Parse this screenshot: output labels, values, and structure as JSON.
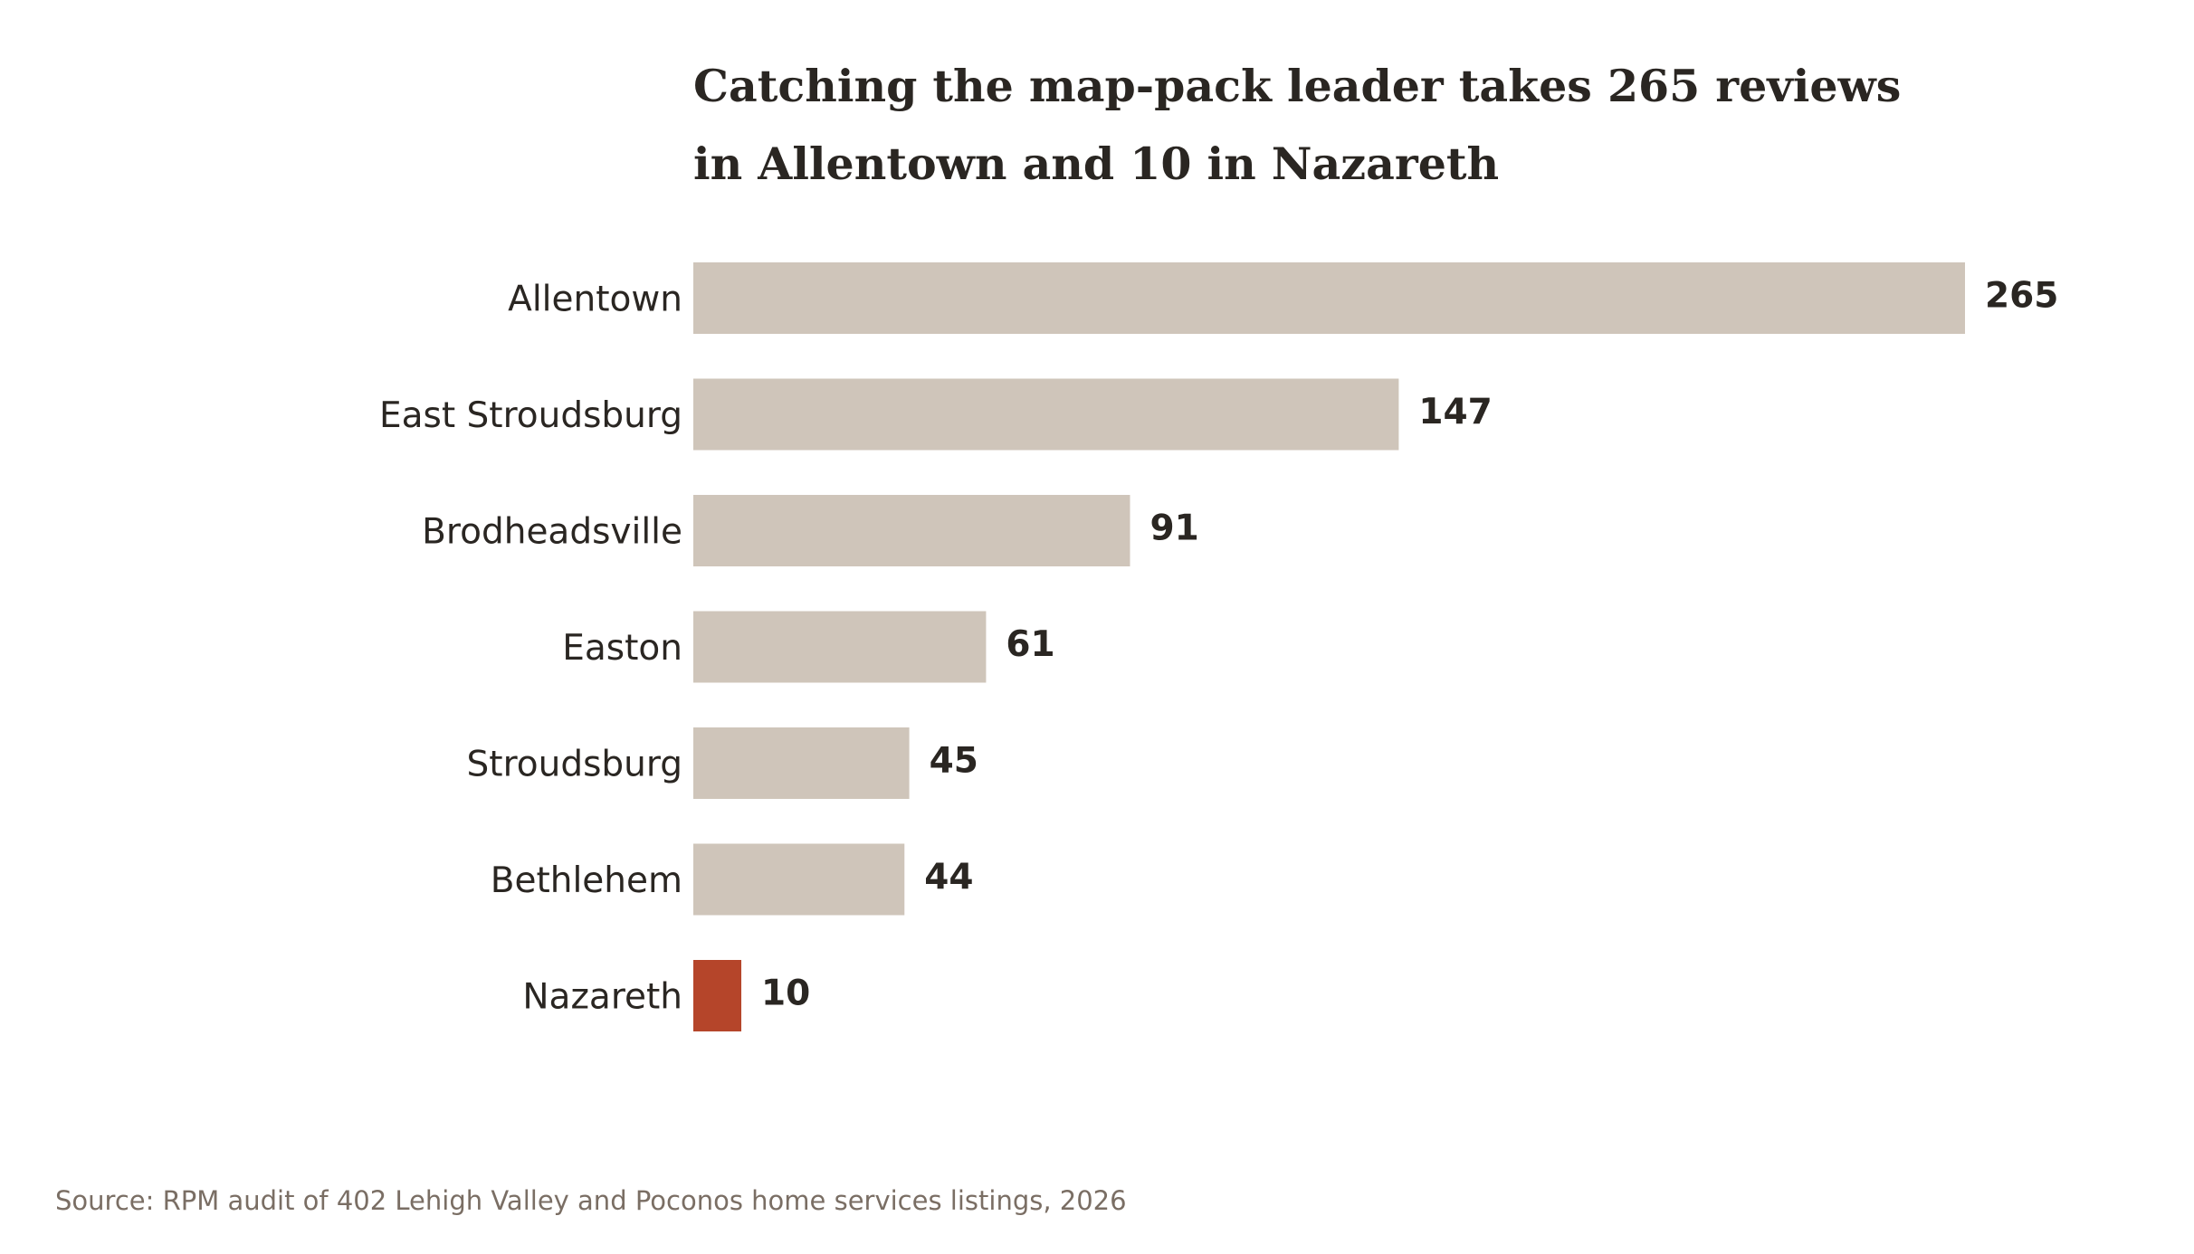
{
  "chart_data": {
    "type": "bar",
    "orientation": "horizontal",
    "title": "Catching the map-pack leader takes 265 reviews in Allentown and 10 in Nazareth",
    "title_lines": [
      "Catching the map-pack leader takes 265 reviews",
      "in Allentown and 10 in Nazareth"
    ],
    "categories": [
      "Allentown",
      "East Stroudsburg",
      "Brodheadsville",
      "Easton",
      "Stroudsburg",
      "Bethlehem",
      "Nazareth"
    ],
    "values": [
      265,
      147,
      91,
      61,
      45,
      44,
      10
    ],
    "highlight": [
      "Nazareth"
    ],
    "xlabel": "",
    "ylabel": "",
    "xlim": [
      0,
      265
    ],
    "grid": false,
    "value_labels": true,
    "source": "Source: RPM audit of 402 Lehigh Valley and Poconos home services listings, 2026"
  },
  "colors": {
    "bar": "#cfc5ba",
    "highlight_bar": "#b5452a",
    "text": "#2a2622",
    "source_text": "#7a6e64",
    "background": "#ffffff"
  }
}
